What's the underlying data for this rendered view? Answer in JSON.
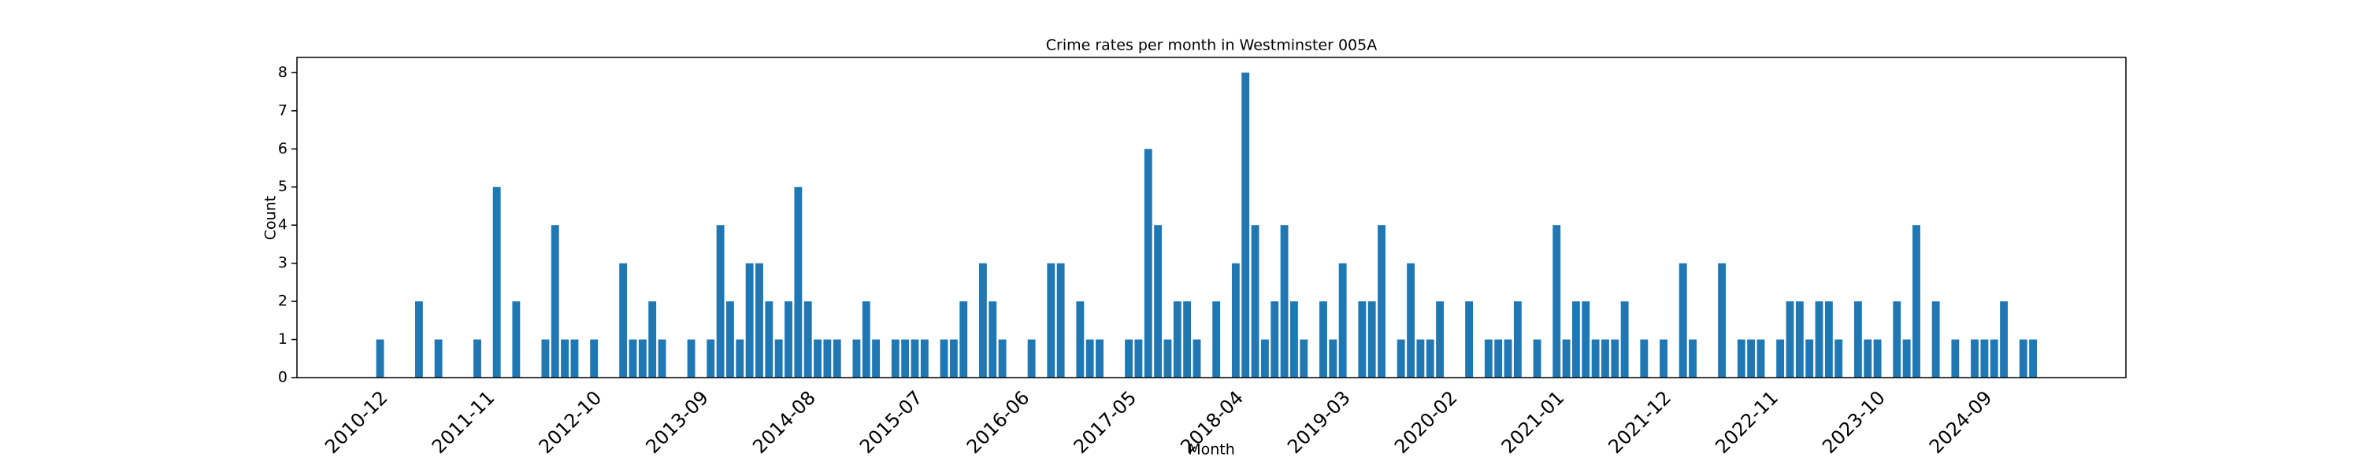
{
  "chart_data": {
    "type": "bar",
    "title": "Crime rates per month in Westminster 005A",
    "x_label": "Month",
    "y_label": "Count",
    "color": "#1f77b4",
    "categories": [
      "2010-12",
      null,
      null,
      null,
      null,
      null,
      null,
      null,
      null,
      null,
      null,
      "2011-11",
      null,
      null,
      null,
      null,
      null,
      null,
      null,
      null,
      null,
      null,
      "2012-10",
      null,
      null,
      null,
      null,
      null,
      null,
      null,
      null,
      null,
      null,
      "2013-09",
      null,
      null,
      null,
      null,
      null,
      null,
      null,
      null,
      null,
      null,
      "2014-08",
      null,
      null,
      null,
      null,
      null,
      null,
      null,
      null,
      null,
      null,
      "2015-07",
      null,
      null,
      null,
      null,
      null,
      null,
      null,
      null,
      null,
      null,
      "2016-06",
      null,
      null,
      null,
      null,
      null,
      null,
      null,
      null,
      null,
      null,
      "2017-05",
      null,
      null,
      null,
      null,
      null,
      null,
      null,
      null,
      null,
      null,
      "2018-04",
      null,
      null,
      null,
      null,
      null,
      null,
      null,
      null,
      null,
      null,
      "2019-03",
      null,
      null,
      null,
      null,
      null,
      null,
      null,
      null,
      null,
      null,
      "2020-02",
      null,
      null,
      null,
      null,
      null,
      null,
      null,
      null,
      null,
      null,
      "2021-01",
      null,
      null,
      null,
      null,
      null,
      null,
      null,
      null,
      null,
      null,
      "2021-12",
      null,
      null,
      null,
      null,
      null,
      null,
      null,
      null,
      null,
      null,
      "2022-11",
      null,
      null,
      null,
      null,
      null,
      null,
      null,
      null,
      null,
      null,
      "2023-10",
      null,
      null,
      null,
      null,
      null,
      null,
      null,
      null,
      null,
      null,
      "2024-09",
      null,
      null,
      null,
      null,
      null,
      null
    ],
    "values": [
      1,
      0,
      0,
      0,
      2,
      0,
      1,
      0,
      0,
      0,
      1,
      0,
      5,
      0,
      2,
      0,
      0,
      1,
      4,
      1,
      1,
      0,
      1,
      0,
      0,
      3,
      1,
      1,
      2,
      1,
      0,
      0,
      1,
      0,
      1,
      4,
      2,
      1,
      3,
      3,
      2,
      1,
      2,
      5,
      2,
      1,
      1,
      1,
      0,
      1,
      2,
      1,
      0,
      1,
      1,
      1,
      1,
      0,
      1,
      1,
      2,
      0,
      3,
      2,
      1,
      0,
      0,
      1,
      0,
      3,
      3,
      0,
      2,
      1,
      1,
      0,
      0,
      1,
      1,
      6,
      4,
      1,
      2,
      2,
      1,
      0,
      2,
      0,
      3,
      8,
      4,
      1,
      2,
      4,
      2,
      1,
      0,
      2,
      1,
      3,
      0,
      2,
      2,
      4,
      0,
      1,
      3,
      1,
      1,
      2,
      0,
      0,
      2,
      0,
      1,
      1,
      1,
      2,
      0,
      1,
      0,
      4,
      1,
      2,
      2,
      1,
      1,
      1,
      2,
      0,
      1,
      0,
      1,
      0,
      3,
      1,
      0,
      0,
      3,
      0,
      1,
      1,
      1,
      0,
      1,
      2,
      2,
      1,
      2,
      2,
      1,
      0,
      2,
      1,
      1,
      0,
      2,
      1,
      4,
      0,
      2,
      0,
      1,
      0,
      1,
      1,
      1,
      2,
      0,
      1,
      1,
      0
    ],
    "ylim": [
      0,
      8.4
    ],
    "yticks": [
      0,
      1,
      2,
      3,
      4,
      5,
      6,
      7,
      8
    ],
    "grid": false
  }
}
